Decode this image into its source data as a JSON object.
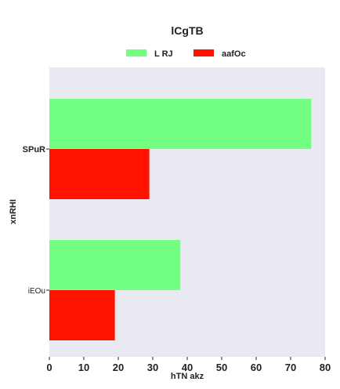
{
  "chart_data": {
    "type": "bar",
    "orientation": "horizontal",
    "title": "lCgTB",
    "xlabel": "hTN akz",
    "ylabel": "xnRHI",
    "categories": [
      "SPuR",
      "iEOu"
    ],
    "series": [
      {
        "name": "L RJ",
        "color": "#73ff82",
        "values": [
          76,
          38
        ]
      },
      {
        "name": "aafOc",
        "color": "#ff1200",
        "values": [
          29,
          19
        ]
      }
    ],
    "xlim": [
      0,
      80
    ],
    "xticks": [
      "0",
      "10",
      "20",
      "30",
      "40",
      "50",
      "60",
      "70",
      "80"
    ],
    "grid": false,
    "legend_position": "top-center",
    "plot_background": "#e9e9f1"
  }
}
